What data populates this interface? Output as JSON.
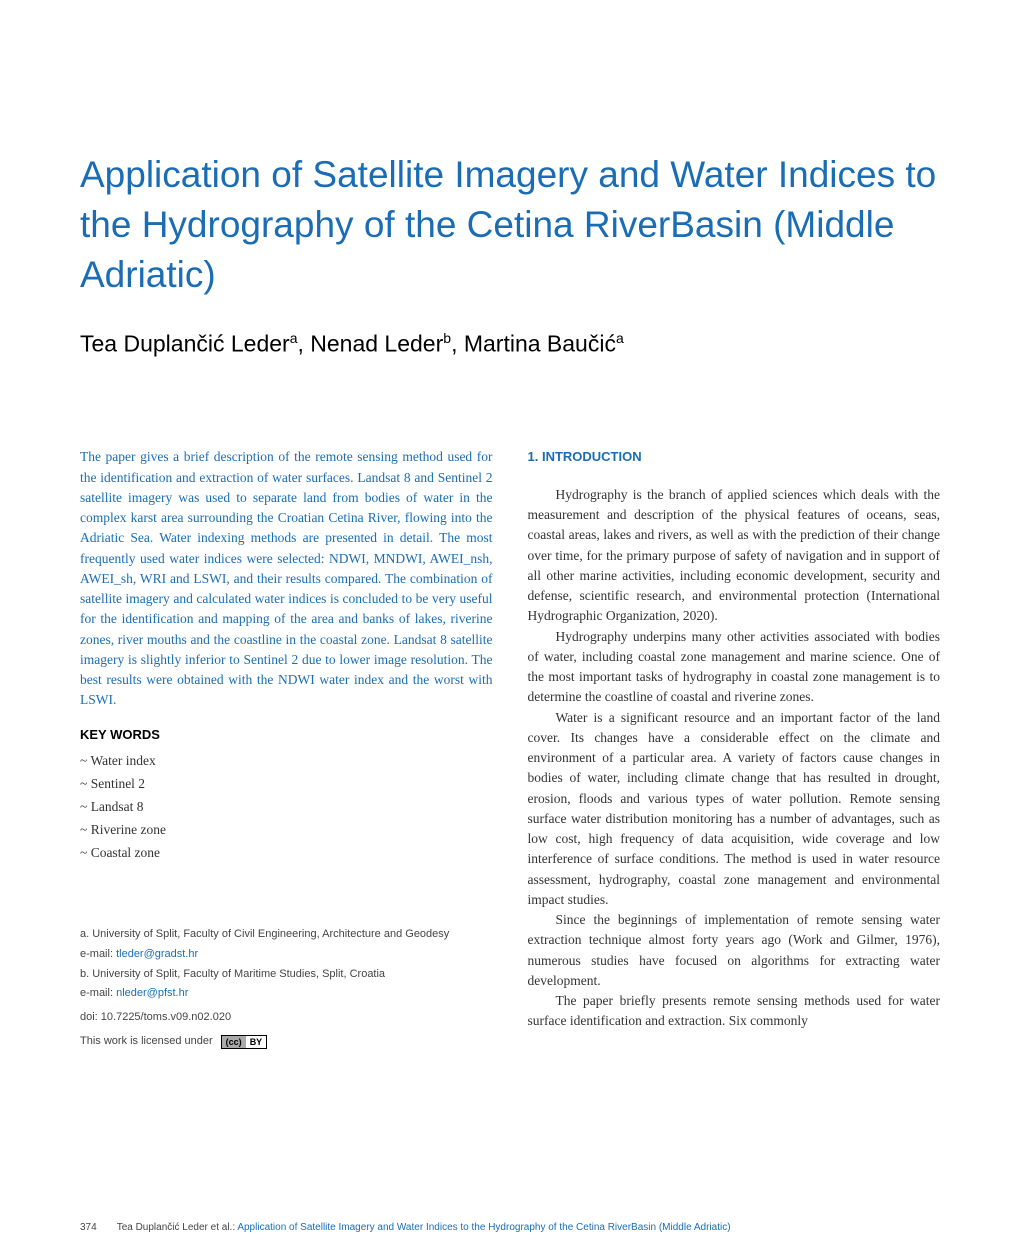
{
  "colors": {
    "accent": "#1a6db5",
    "text": "#000000",
    "body_text": "#333333",
    "meta_text": "#444444",
    "background": "#ffffff"
  },
  "typography": {
    "title_fontsize": 37,
    "authors_fontsize": 23,
    "body_fontsize": 13.5,
    "heading_fontsize": 13,
    "meta_fontsize": 11,
    "footer_fontsize": 10
  },
  "title": "Application of Satellite Imagery and Water Indices to the Hydrography of the Cetina RiverBasin (Middle Adriatic)",
  "authors_html": "Tea Duplančić Leder<sup>a</sup>, Nenad Leder<sup>b</sup>, Martina Baučić<sup>a</sup>",
  "abstract": {
    "text": "The paper gives a brief description of the remote sensing method used for the identification and extraction of water surfaces. Landsat 8 and Sentinel 2 satellite imagery was used to separate land from bodies of water in the complex karst area surrounding the Croatian Cetina River, flowing into the Adriatic Sea. Water indexing methods are presented in detail. The most frequently used water indices were selected: NDWI, MNDWI, AWEI_nsh, AWEI_sh, WRI and LSWI, and their results compared. The combination of satellite imagery and calculated water indices is concluded to be very useful for the identification and mapping of the area and banks of lakes, riverine zones, river mouths and the coastline in the coastal zone. Landsat 8 satellite imagery is slightly inferior to Sentinel 2 due to lower image resolution. The best results were obtained with the NDWI water index and the worst with LSWI."
  },
  "keywords": {
    "heading": "KEY WORDS",
    "items": [
      "Water index",
      "Sentinel 2",
      "Landsat 8",
      "Riverine zone",
      "Coastal zone"
    ]
  },
  "affiliations": {
    "a": {
      "text": "a. University of Split, Faculty of Civil Engineering, Architecture and Geodesy",
      "email_label": "e-mail:",
      "email": "tleder@gradst.hr"
    },
    "b": {
      "text": "b. University of Split, Faculty of Maritime Studies, Split, Croatia",
      "email_label": "e-mail:",
      "email": "nleder@pfst.hr"
    },
    "doi": "doi: 10.7225/toms.v09.n02.020",
    "license_label": "This work is licensed under",
    "cc_left": "(cc)",
    "cc_right": "BY"
  },
  "intro": {
    "heading": "1. INTRODUCTION",
    "paragraphs": [
      "Hydrography is the branch of applied sciences which deals with the measurement and description of the physical features of oceans, seas, coastal areas, lakes and rivers, as well as with the prediction of their change over time, for the primary purpose of safety of navigation and in support of all other marine activities, including economic development, security and defense, scientific research, and environmental protection (International Hydrographic Organization, 2020).",
      "Hydrography underpins many other activities associated with bodies of water, including coastal zone management and marine science. One of the most important tasks of hydrography in coastal zone management is to determine the coastline of coastal and riverine zones.",
      "Water is a significant resource and an important factor of the land cover. Its changes have a considerable effect on the climate and environment of a particular area. A variety of factors cause changes in bodies of water, including climate change that has resulted in drought, erosion, floods and various types of water pollution. Remote sensing surface water distribution monitoring has a number of advantages, such as low cost, high frequency of data acquisition, wide coverage and low interference of surface conditions. The method is used in water resource assessment, hydrography, coastal zone management and environmental impact studies.",
      "Since the beginnings of implementation of remote sensing water extraction technique almost forty years ago (Work and Gilmer, 1976), numerous studies have focused on algorithms for extracting water development.",
      "The paper briefly presents remote sensing methods used for water surface identification and extraction. Six commonly"
    ]
  },
  "footer": {
    "page_number": "374",
    "citation_author": "Tea Duplančić Leder et al.: ",
    "citation_title": "Application of Satellite Imagery and Water Indices to the Hydrography of the Cetina RiverBasin (Middle Adriatic)"
  }
}
